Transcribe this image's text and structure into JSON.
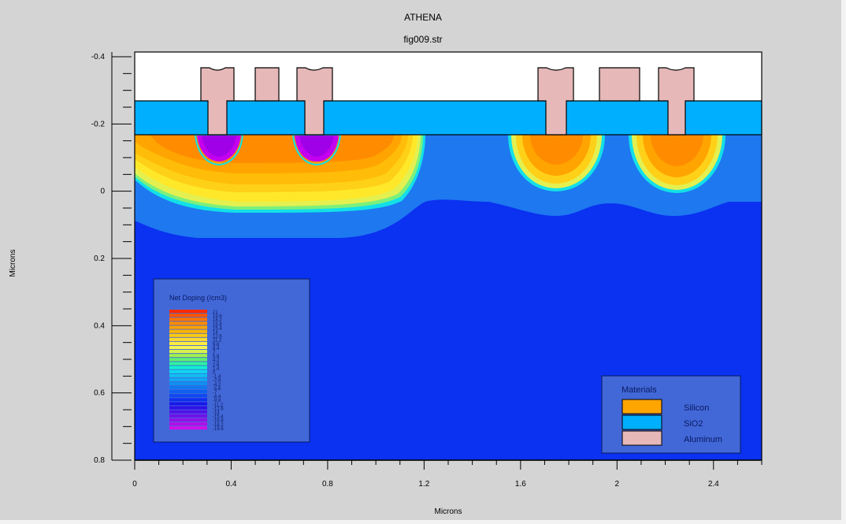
{
  "window": {
    "title": "ATHENA",
    "subtitle": "fig009.str"
  },
  "axes": {
    "x_label": "Microns",
    "y_label": "Microns",
    "x_ticks": [
      "0",
      "0.4",
      "0.8",
      "1.2",
      "1.6",
      "2",
      "2.4"
    ],
    "y_ticks": [
      "-0.4",
      "-0.2",
      "0",
      "0.2",
      "0.4",
      "0.6",
      "0.8"
    ],
    "x_range": [
      0,
      2.6
    ],
    "y_range": [
      -0.4,
      0.8
    ]
  },
  "legend_doping": {
    "title": "Net Doping (/cm3)",
    "labels": [
      "21",
      "19.6",
      "18.2",
      "16.8",
      "15.4",
      "14",
      "12.6",
      "11.2",
      "9.8",
      "8.4",
      "7",
      "5.6",
      "4.2",
      "2.8",
      "1.4",
      "0",
      "-1.4",
      "-2.8",
      "-4.2",
      "-5.6",
      "-7",
      "-8.4",
      "-9.8",
      "-11.2",
      "-12.6",
      "-14",
      "-15.4",
      "-16.8",
      "-18.2",
      "-19.6"
    ],
    "colors": [
      "#ff2a00",
      "#ff5500",
      "#ff7400",
      "#ff8c00",
      "#ffa200",
      "#ffb600",
      "#ffca10",
      "#ffdc2a",
      "#ffec40",
      "#f4f455",
      "#d6f050",
      "#9ef050",
      "#60f070",
      "#30f0a0",
      "#10f0d0",
      "#10d8f0",
      "#10c0f0",
      "#10a8f0",
      "#1090f0",
      "#1078f0",
      "#1060f0",
      "#1048f0",
      "#1030f0",
      "#1818e8",
      "#3010e8",
      "#5010e8",
      "#7010e8",
      "#9010e8",
      "#b010e8",
      "#d010e8"
    ]
  },
  "legend_materials": {
    "title": "Materials",
    "items": [
      {
        "name": "Silicon",
        "color": "#ffa500"
      },
      {
        "name": "SiO2",
        "color": "#00b0ff"
      },
      {
        "name": "Aluminum",
        "color": "#e6b8b8"
      }
    ]
  },
  "colors": {
    "background": "#d4d4d4",
    "oxide": "#00b0ff",
    "aluminum": "#e6b8b8",
    "substrate": "#0a32f0",
    "well": "#1e78f0"
  }
}
